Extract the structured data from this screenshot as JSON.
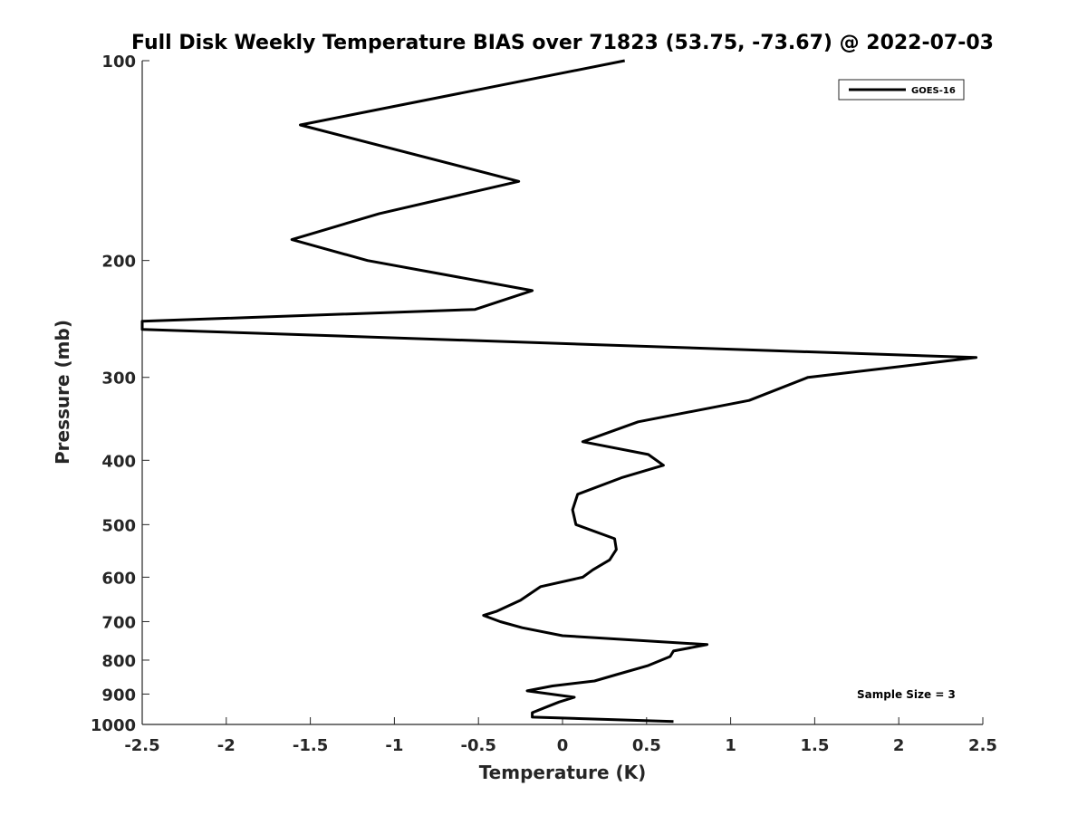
{
  "chart_data": {
    "type": "line",
    "title": "Full Disk Weekly Temperature BIAS over 71823 (53.75, -73.67) @ 2022-07-03",
    "xlabel": "Temperature (K)",
    "ylabel": "Pressure (mb)",
    "xlim": [
      -2.5,
      2.5
    ],
    "ylim": [
      100,
      1000
    ],
    "y_scale": "log",
    "y_reversed": true,
    "x_ticks": [
      -2.5,
      -2,
      -1.5,
      -1,
      -0.5,
      0,
      0.5,
      1,
      1.5,
      2,
      2.5
    ],
    "x_tick_labels": [
      "-2.5",
      "-2",
      "-1.5",
      "-1",
      "-0.5",
      "0",
      "0.5",
      "1",
      "1.5",
      "2",
      "2.5"
    ],
    "y_ticks": [
      100,
      200,
      300,
      400,
      500,
      600,
      700,
      800,
      900,
      1000
    ],
    "y_tick_labels": [
      "100",
      "200",
      "300",
      "400",
      "500",
      "600",
      "700",
      "800",
      "900",
      "1000"
    ],
    "grid": false,
    "legend_position": "top-right",
    "annotation": "Sample Size = 3",
    "series": [
      {
        "name": "GOES-16",
        "color": "#000000",
        "points": [
          [
            0.37,
            100
          ],
          [
            -1.56,
            125
          ],
          [
            -0.26,
            152
          ],
          [
            -1.09,
            170
          ],
          [
            -1.61,
            186
          ],
          [
            -1.16,
            200
          ],
          [
            -0.18,
            222
          ],
          [
            -0.52,
            237
          ],
          [
            -2.5,
            247
          ],
          [
            -2.5,
            254
          ],
          [
            2.46,
            280
          ],
          [
            1.46,
            300
          ],
          [
            1.11,
            325
          ],
          [
            0.45,
            350
          ],
          [
            0.12,
            375
          ],
          [
            0.51,
            392
          ],
          [
            0.6,
            407
          ],
          [
            0.35,
            425
          ],
          [
            0.09,
            450
          ],
          [
            0.06,
            475
          ],
          [
            0.08,
            500
          ],
          [
            0.31,
            525
          ],
          [
            0.32,
            545
          ],
          [
            0.28,
            565
          ],
          [
            0.18,
            585
          ],
          [
            0.12,
            600
          ],
          [
            -0.13,
            620
          ],
          [
            -0.25,
            650
          ],
          [
            -0.39,
            675
          ],
          [
            -0.47,
            685
          ],
          [
            -0.37,
            700
          ],
          [
            -0.24,
            715
          ],
          [
            0.0,
            735
          ],
          [
            0.86,
            758
          ],
          [
            0.66,
            775
          ],
          [
            0.64,
            790
          ],
          [
            0.51,
            815
          ],
          [
            0.33,
            840
          ],
          [
            0.19,
            860
          ],
          [
            -0.06,
            875
          ],
          [
            -0.21,
            890
          ],
          [
            0.07,
            910
          ],
          [
            -0.02,
            925
          ],
          [
            -0.09,
            940
          ],
          [
            -0.18,
            960
          ],
          [
            -0.18,
            975
          ],
          [
            0.66,
            990
          ]
        ]
      }
    ]
  }
}
